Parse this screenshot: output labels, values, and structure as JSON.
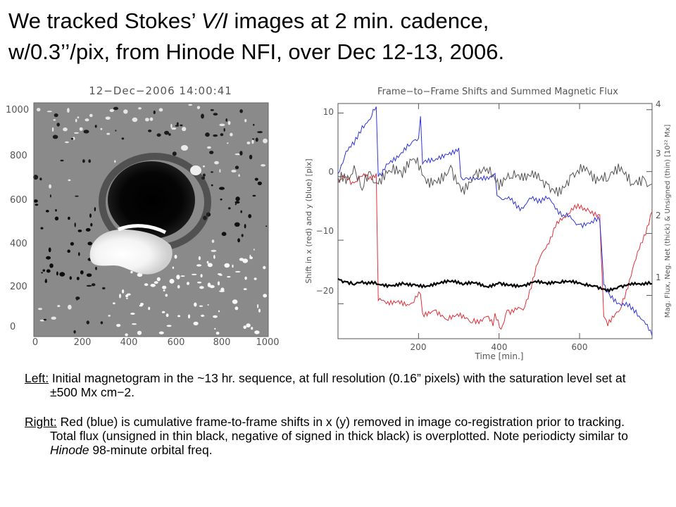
{
  "slide": {
    "title_line1_a": "We tracked Stokes’ ",
    "title_line1_b": "V/I",
    "title_line1_c": " images at 2 min. cadence,",
    "title_line2": "w/0.3’’/pix, from Hinode NFI, over Dec 12-13, 2006."
  },
  "caption": {
    "left_head": "Left:",
    "left_text": " Initial magnetogram in the ~13 hr. sequence, at full resolution (0.16” pixels) with the saturation level set at ±500 Mx cm−2.",
    "right_head": "Right:",
    "right_text_a": "  Red (blue) is cumulative frame-to-frame shifts in x (y) removed in image co-registration prior to tracking.  Total flux (unsigned in thin black, negative of signed in thick black) is overplotted.  Note periodicty similar to ",
    "right_text_b": "Hinode",
    "right_text_c": " 98-minute orbital freq."
  },
  "chart_data": [
    {
      "type": "heatmap",
      "title": "12−Dec−2006 14:00:41",
      "x_ticks": [
        "0",
        "200",
        "400",
        "600",
        "800",
        "1000"
      ],
      "y_ticks": [
        "0",
        "200",
        "400",
        "600",
        "800",
        "1000"
      ],
      "xlim": [
        0,
        1024
      ],
      "ylim": [
        0,
        1024
      ],
      "colormap": "grayscale, saturated at ±500 Mx cm−2"
    },
    {
      "type": "line",
      "title": "Frame−to−Frame Shifts and Summed Magnetic Flux",
      "xlabel": "Time [min.]",
      "ylabel": "Shift in x (red) and y (blue) [pix]",
      "ylabel_right": "Mag. Flux, Neg. Net (thick) & Unsigned (thin) [10²² Mx]",
      "x_ticks": [
        "200",
        "400",
        "600"
      ],
      "y_ticks": [
        "10",
        "0",
        "−10",
        "−20"
      ],
      "y2_ticks": [
        "1",
        "2",
        "3",
        "4"
      ],
      "xlim": [
        0,
        780
      ],
      "ylim": [
        -25.5,
        11.5
      ],
      "y2lim": [
        0.3,
        4.1
      ],
      "series": [
        {
          "color": "#e0303a",
          "width": 1,
          "axis": "left",
          "x": [
            0,
            20,
            40,
            60,
            80,
            95,
            100,
            120,
            150,
            180,
            205,
            210,
            240,
            270,
            300,
            330,
            370,
            385,
            390,
            405,
            420,
            460,
            500,
            540,
            580,
            620,
            650,
            660,
            670,
            700,
            740,
            780
          ],
          "y": [
            -1,
            0,
            -1,
            0,
            0,
            0.5,
            -19.5,
            -20,
            -19.5,
            -20,
            -18.5,
            -21.5,
            -21,
            -22.5,
            -22,
            -23,
            -22,
            -23.5,
            -21.5,
            -24,
            -21,
            -21,
            -13,
            -8,
            -5,
            -5,
            -6,
            -22,
            -23.5,
            -21,
            -13,
            -5.5
          ]
        },
        {
          "color": "#2f35d6",
          "width": 1,
          "axis": "left",
          "x": [
            0,
            20,
            40,
            60,
            80,
            95,
            100,
            120,
            150,
            180,
            200,
            205,
            210,
            240,
            270,
            300,
            305,
            310,
            340,
            370,
            390,
            395,
            420,
            460,
            480,
            520,
            560,
            600,
            630,
            650,
            660,
            670,
            700,
            740,
            780
          ],
          "y": [
            0.5,
            4,
            5,
            8,
            9,
            11,
            0,
            2,
            3,
            5,
            6,
            9.5,
            2,
            2.5,
            3.5,
            4.5,
            0,
            -0.5,
            -0.5,
            0,
            0.5,
            -3,
            -3.5,
            -5,
            -3.5,
            -3.5,
            -6,
            -7.5,
            -7,
            -7,
            -17,
            -18,
            -20,
            -21,
            -25
          ]
        },
        {
          "color": "#555555",
          "width": 1,
          "axis": "right",
          "x": [
            0,
            20,
            40,
            60,
            80,
            100,
            130,
            160,
            190,
            220,
            250,
            280,
            310,
            340,
            370,
            400,
            430,
            460,
            490,
            520,
            550,
            580,
            610,
            640,
            670,
            700,
            730,
            760,
            780
          ],
          "y": [
            2.9,
            2.8,
            3.1,
            2.7,
            3.0,
            2.8,
            3.0,
            2.9,
            3.2,
            2.8,
            2.9,
            3.1,
            2.75,
            2.95,
            3.05,
            2.7,
            2.9,
            2.85,
            3.0,
            2.8,
            2.75,
            2.95,
            3.1,
            2.8,
            2.85,
            3.0,
            2.8,
            2.9,
            2.8
          ]
        },
        {
          "color": "#000000",
          "width": 2.2,
          "axis": "right",
          "x": [
            0,
            20,
            40,
            60,
            80,
            100,
            130,
            160,
            190,
            220,
            250,
            280,
            310,
            340,
            370,
            400,
            430,
            460,
            490,
            520,
            550,
            580,
            610,
            640,
            670,
            700,
            730,
            760,
            780
          ],
          "y": [
            1.27,
            1.22,
            1.17,
            1.23,
            1.19,
            1.18,
            1.16,
            1.21,
            1.18,
            1.15,
            1.19,
            1.22,
            1.17,
            1.2,
            1.14,
            1.21,
            1.18,
            1.16,
            1.23,
            1.18,
            1.2,
            1.21,
            1.18,
            1.15,
            1.1,
            1.15,
            1.2,
            1.17,
            1.19
          ]
        }
      ]
    }
  ]
}
